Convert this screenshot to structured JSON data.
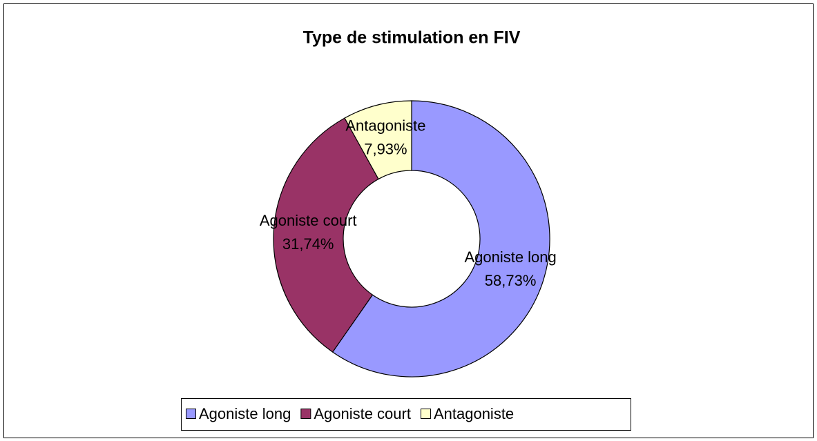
{
  "chart_data": {
    "type": "donut",
    "title": "Type de stimulation en FIV",
    "categories": [
      "Agoniste long",
      "Agoniste court",
      "Antagoniste"
    ],
    "values": [
      58.73,
      31.74,
      7.93
    ],
    "value_labels": [
      "58,73%",
      "31,74%",
      "7,93%"
    ],
    "colors": [
      "#9999ff",
      "#993366",
      "#ffffcc"
    ],
    "legend": "bottom"
  }
}
